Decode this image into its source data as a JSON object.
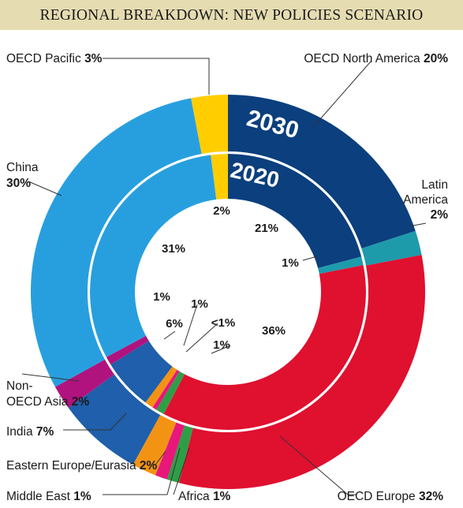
{
  "chart_data": {
    "type": "pie",
    "title": "REGIONAL BREAKDOWN: NEW POLICIES SCENARIO",
    "rings": [
      {
        "name": "2030",
        "ring": "outer",
        "slices": [
          {
            "region": "OECD North America",
            "value": 20,
            "label": "20%",
            "color": "#0b3f7d"
          },
          {
            "region": "Latin America",
            "value": 2,
            "label": "2%",
            "color": "#1d9bab"
          },
          {
            "region": "OECD Europe",
            "value": 32,
            "label": "32%",
            "color": "#e0102f"
          },
          {
            "region": "Africa",
            "value": 1,
            "label": "1%",
            "color": "#2e9e46"
          },
          {
            "region": "Middle East",
            "value": 1,
            "label": "1%",
            "color": "#e8177a"
          },
          {
            "region": "Eastern Europe/Eurasia",
            "value": 2,
            "label": "2%",
            "color": "#f39314"
          },
          {
            "region": "India",
            "value": 7,
            "label": "7%",
            "color": "#1f5fab"
          },
          {
            "region": "Non-OECD Asia",
            "value": 2,
            "label": "2%",
            "color": "#b0137e"
          },
          {
            "region": "China",
            "value": 30,
            "label": "30%",
            "color": "#279fdf"
          },
          {
            "region": "OECD Pacific",
            "value": 3,
            "label": "3%",
            "color": "#ffcd00"
          }
        ]
      },
      {
        "name": "2020",
        "ring": "inner",
        "slices": [
          {
            "region": "OECD North America",
            "value": 21,
            "label": "21%",
            "color": "#0b3f7d"
          },
          {
            "region": "Latin America",
            "value": 1,
            "label": "1%",
            "color": "#1d9bab"
          },
          {
            "region": "OECD Europe",
            "value": 36,
            "label": "36%",
            "color": "#e0102f"
          },
          {
            "region": "Africa",
            "value": 1,
            "label": "1%",
            "color": "#2e9e46"
          },
          {
            "region": "Middle East",
            "value": 0.5,
            "label": "<1%",
            "color": "#e8177a"
          },
          {
            "region": "Eastern Europe/Eurasia",
            "value": 1,
            "label": "1%",
            "color": "#f39314"
          },
          {
            "region": "India",
            "value": 6,
            "label": "6%",
            "color": "#1f5fab"
          },
          {
            "region": "Non-OECD Asia",
            "value": 1,
            "label": "1%",
            "color": "#b0137e"
          },
          {
            "region": "China",
            "value": 31,
            "label": "31%",
            "color": "#279fdf"
          },
          {
            "region": "OECD Pacific",
            "value": 2,
            "label": "2%",
            "color": "#ffcd00"
          }
        ]
      }
    ],
    "region_labels": [
      {
        "name": "OECD North America",
        "value": "20%"
      },
      {
        "name": "Latin America",
        "value": "2%"
      },
      {
        "name": "OECD Europe",
        "value": "32%"
      },
      {
        "name": "Africa",
        "value": "1%"
      },
      {
        "name": "Middle East",
        "value": "1%"
      },
      {
        "name": "Eastern Europe/Eurasia",
        "value": "2%"
      },
      {
        "name": "India",
        "value": "7%"
      },
      {
        "name": "Non-OECD Asia",
        "value": "2%"
      },
      {
        "name": "China",
        "value": "30%"
      },
      {
        "name": "OECD Pacific",
        "value": "3%"
      }
    ],
    "colors": {
      "banner": "#e6dcb1",
      "separator": "#ffffff",
      "leader": "#333333"
    }
  }
}
